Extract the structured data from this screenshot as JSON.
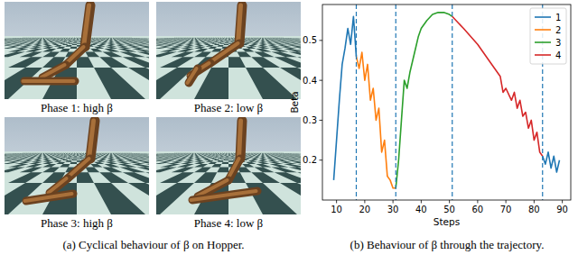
{
  "panels": [
    {
      "caption": "Phase 1: high β"
    },
    {
      "caption": "Phase 2: low β"
    },
    {
      "caption": "Phase 3: high β"
    },
    {
      "caption": "Phase 4: low β"
    }
  ],
  "captions": [
    "(a) Cyclical behaviour of β on Hopper.",
    "(b) Behaviour of β through the trajectory."
  ],
  "chart_data": {
    "type": "line",
    "x_label": "Steps",
    "y_label": "Beta",
    "xlim": [
      5,
      93
    ],
    "ylim": [
      0.1,
      0.59
    ],
    "xticks": [
      10,
      20,
      30,
      40,
      50,
      60,
      70,
      80,
      90
    ],
    "yticks": [
      0.2,
      0.3,
      0.4,
      0.5
    ],
    "legend": "upper right",
    "vlines": [
      17,
      31,
      51,
      83
    ],
    "series": [
      {
        "name": "1",
        "color": "#1f77b4",
        "x": [
          9,
          10,
          11,
          12,
          13,
          14,
          15,
          16,
          17,
          50,
          83,
          84,
          85,
          86,
          87,
          88,
          89
        ],
        "values": [
          0.15,
          0.25,
          0.35,
          0.44,
          0.48,
          0.53,
          0.49,
          0.56,
          0.46,
          null,
          0.21,
          0.19,
          0.22,
          0.18,
          0.21,
          0.17,
          0.2
        ]
      },
      {
        "name": "2",
        "color": "#ff7f0e",
        "x": [
          17,
          18,
          19,
          20,
          21,
          22,
          23,
          24,
          25,
          26,
          27,
          28,
          29,
          30,
          31
        ],
        "values": [
          0.46,
          0.43,
          0.47,
          0.4,
          0.44,
          0.35,
          0.38,
          0.3,
          0.33,
          0.22,
          0.25,
          0.16,
          0.15,
          0.13,
          0.13
        ]
      },
      {
        "name": "3",
        "color": "#2ca02c",
        "x": [
          31,
          32,
          33,
          34,
          35,
          36,
          37,
          38,
          39,
          40,
          42,
          44,
          46,
          48,
          50,
          51
        ],
        "values": [
          0.13,
          0.2,
          0.3,
          0.4,
          0.38,
          0.42,
          0.45,
          0.48,
          0.51,
          0.53,
          0.55,
          0.565,
          0.57,
          0.57,
          0.565,
          0.56
        ]
      },
      {
        "name": "4",
        "color": "#d62728",
        "x": [
          51,
          55,
          60,
          65,
          68,
          69,
          70,
          72,
          73,
          74,
          75,
          76,
          77,
          78,
          79,
          80,
          81,
          82,
          83
        ],
        "values": [
          0.56,
          0.53,
          0.49,
          0.44,
          0.41,
          0.37,
          0.38,
          0.35,
          0.37,
          0.33,
          0.35,
          0.31,
          0.32,
          0.28,
          0.3,
          0.25,
          0.27,
          0.22,
          0.21
        ]
      }
    ]
  }
}
